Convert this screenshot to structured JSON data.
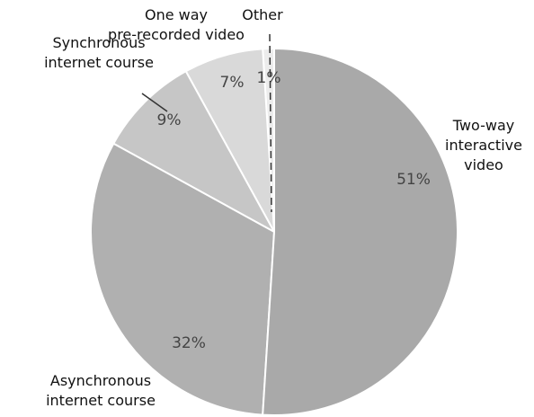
{
  "chart_data": {
    "type": "pie",
    "categories": [
      "Two-way\ninteractive\nvideo",
      "Asynchronous\ninternet course",
      "Synchronous\ninternet course",
      "One way\npre-recorded video",
      "Other"
    ],
    "values": [
      51,
      32,
      9,
      7,
      1
    ],
    "value_labels": [
      "51%",
      "32%",
      "9%",
      "7%",
      "1%"
    ],
    "colors": [
      "#a9a9a9",
      "#b0b0b0",
      "#c6c6c6",
      "#d9d9d9",
      "#ececec"
    ]
  }
}
